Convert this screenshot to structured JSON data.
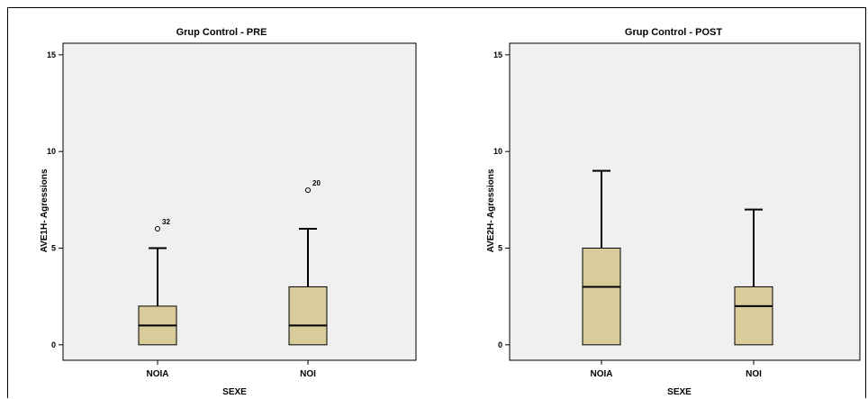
{
  "chart_data": [
    {
      "type": "box",
      "title": "Grup Control - PRE",
      "xlabel": "SEXE",
      "ylabel": "AVE1H- Agressions",
      "ylim": [
        -0.8,
        15.6
      ],
      "yticks": [
        0,
        5,
        10,
        15
      ],
      "categories": [
        "NOIA",
        "NOI"
      ],
      "boxes": [
        {
          "category": "NOIA",
          "min": 0,
          "q1": 0,
          "median": 1,
          "q3": 2,
          "max": 5,
          "outliers": [
            {
              "value": 6,
              "label": "32"
            }
          ]
        },
        {
          "category": "NOI",
          "min": 0,
          "q1": 0,
          "median": 1,
          "q3": 3,
          "max": 6,
          "outliers": [
            {
              "value": 8,
              "label": "20"
            }
          ]
        }
      ],
      "colors": {
        "box": "#d8cc9a",
        "plot_bg": "#f0f0f0"
      }
    },
    {
      "type": "box",
      "title": "Grup Control - POST",
      "xlabel": "SEXE",
      "ylabel": "AVE2H- Agressions",
      "ylim": [
        -0.8,
        15.6
      ],
      "yticks": [
        0,
        5,
        10,
        15
      ],
      "categories": [
        "NOIA",
        "NOI"
      ],
      "boxes": [
        {
          "category": "NOIA",
          "min": 0,
          "q1": 0,
          "median": 3,
          "q3": 5,
          "max": 9,
          "outliers": []
        },
        {
          "category": "NOI",
          "min": 0,
          "q1": 0,
          "median": 2,
          "q3": 3,
          "max": 7,
          "outliers": []
        }
      ],
      "colors": {
        "box": "#d8cc9a",
        "plot_bg": "#f0f0f0"
      }
    }
  ]
}
